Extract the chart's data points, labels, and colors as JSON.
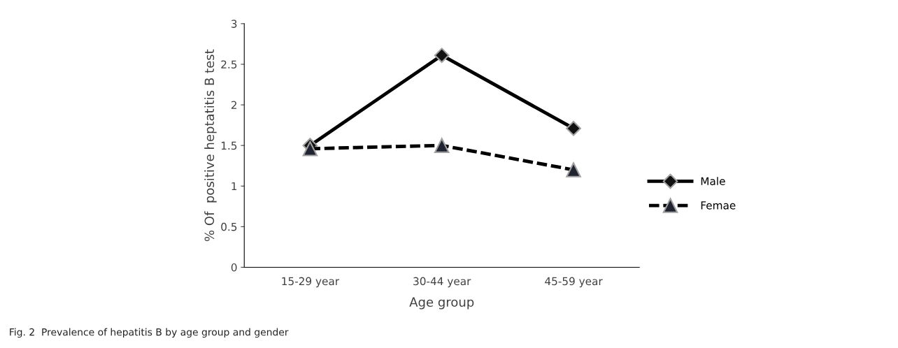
{
  "chart_data": {
    "type": "line",
    "xlabel": "Age group",
    "ylabel": "% Of  positive heptatitis B test",
    "categories": [
      "15-29 year",
      "30-44 year",
      "45-59 year"
    ],
    "series": [
      {
        "name": "Male",
        "color": "#000000",
        "values": [
          1.5,
          2.61,
          1.71
        ],
        "marker": "diamond",
        "line_style": "solid"
      },
      {
        "name": "Femae",
        "color": "#000000",
        "values": [
          1.46,
          1.5,
          1.2
        ],
        "marker": "triangle",
        "line_style": "dashed"
      }
    ],
    "ylim": [
      0,
      3
    ],
    "yticks": [
      0,
      0.5,
      1,
      1.5,
      2,
      2.5,
      3
    ],
    "grid": false,
    "legend": "right",
    "annotations": [
      "Fig. 2  Prevalence of hepatitis B by age group and gender"
    ]
  }
}
